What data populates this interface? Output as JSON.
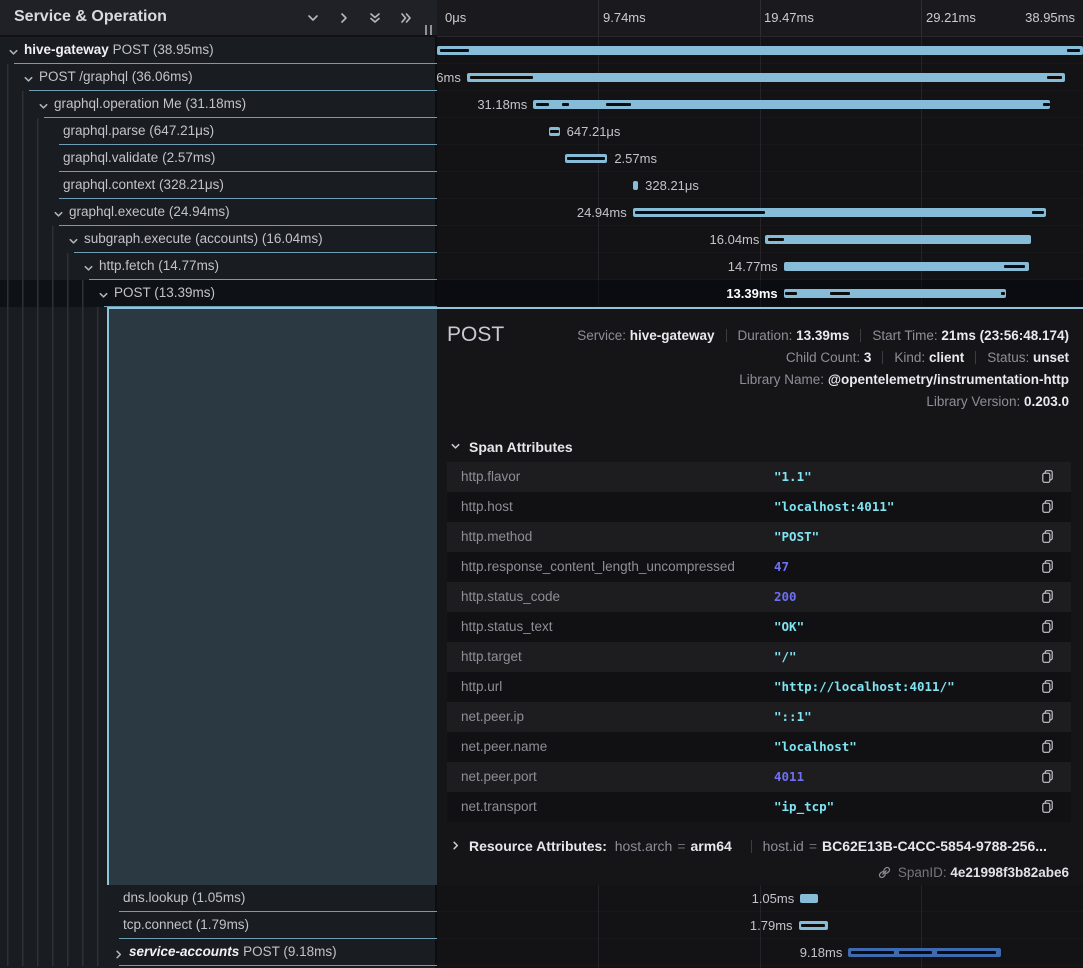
{
  "header": {
    "title": "Service & Operation",
    "icons": [
      "collapse-one-icon",
      "expand-one-icon",
      "collapse-all-icon",
      "expand-all-icon"
    ]
  },
  "timeline": {
    "ticks": [
      "0μs",
      "9.74ms",
      "19.47ms",
      "29.21ms",
      "38.95ms"
    ]
  },
  "colors": {
    "bar_primary": "#86bcd7",
    "bar_secondary": "#3e6bb0",
    "accent_border": "#8fc4da",
    "string_value": "#7fe3f2",
    "number_value": "#6f6ff2"
  },
  "chart_data": {
    "type": "gantt-trace",
    "total_ms": 38.95,
    "spans": [
      {
        "service": "hive-gateway",
        "service_italic": false,
        "name": "POST",
        "duration_label": "38.95ms",
        "start_ms": 0,
        "duration_ms": 38.95,
        "depth": 0,
        "expander": "down",
        "label_side": "none",
        "section": "top",
        "selected": false,
        "color": "primary",
        "marks": [
          [
            0.5,
            5
          ],
          [
            97.5,
            99.5
          ]
        ]
      },
      {
        "service": null,
        "service_italic": false,
        "name": "POST /graphql",
        "duration_label": "36.06ms",
        "start_ms": 1.8,
        "duration_ms": 36.06,
        "depth": 1,
        "expander": "down",
        "label_side": "left",
        "section": "top",
        "selected": false,
        "color": "primary",
        "marks": [
          [
            0.5,
            11
          ],
          [
            97,
            99.5
          ]
        ]
      },
      {
        "service": null,
        "service_italic": false,
        "name": "graphql.operation Me",
        "duration_label": "31.18ms",
        "start_ms": 5.8,
        "duration_ms": 31.18,
        "depth": 2,
        "expander": "down",
        "label_side": "left",
        "section": "top",
        "selected": false,
        "color": "primary",
        "marks": [
          [
            0.5,
            3
          ],
          [
            5.5,
            7
          ],
          [
            14,
            19
          ],
          [
            98.5,
            100
          ]
        ]
      },
      {
        "service": null,
        "service_italic": false,
        "name": "graphql.parse",
        "duration_label": "647.21μs",
        "start_ms": 6.75,
        "duration_ms": 0.64721,
        "depth": 3,
        "expander": null,
        "label_side": "right",
        "section": "top",
        "selected": false,
        "color": "primary",
        "marks": [
          [
            8,
            92
          ]
        ]
      },
      {
        "service": null,
        "service_italic": false,
        "name": "graphql.validate",
        "duration_label": "2.57ms",
        "start_ms": 7.7,
        "duration_ms": 2.57,
        "depth": 3,
        "expander": null,
        "label_side": "right",
        "section": "top",
        "selected": false,
        "color": "primary",
        "marks": [
          [
            5,
            95
          ]
        ]
      },
      {
        "service": null,
        "service_italic": false,
        "name": "graphql.context",
        "duration_label": "328.21μs",
        "start_ms": 11.8,
        "duration_ms": 0.32821,
        "depth": 3,
        "expander": null,
        "label_side": "right",
        "section": "top",
        "selected": false,
        "color": "primary",
        "marks": []
      },
      {
        "service": null,
        "service_italic": false,
        "name": "graphql.execute",
        "duration_label": "24.94ms",
        "start_ms": 11.8,
        "duration_ms": 24.94,
        "depth": 3,
        "expander": "down",
        "label_side": "left",
        "section": "top",
        "selected": false,
        "color": "primary",
        "marks": [
          [
            0.5,
            32
          ],
          [
            96.5,
            99.5
          ]
        ]
      },
      {
        "service": null,
        "service_italic": false,
        "name": "subgraph.execute (accounts)",
        "duration_label": "16.04ms",
        "start_ms": 19.8,
        "duration_ms": 16.04,
        "depth": 4,
        "expander": "down",
        "label_side": "left",
        "section": "top",
        "selected": false,
        "color": "primary",
        "marks": [
          [
            1,
            7
          ]
        ]
      },
      {
        "service": null,
        "service_italic": false,
        "name": "http.fetch",
        "duration_label": "14.77ms",
        "start_ms": 20.9,
        "duration_ms": 14.77,
        "depth": 5,
        "expander": "down",
        "label_side": "left",
        "section": "top",
        "selected": false,
        "color": "primary",
        "marks": [
          [
            90,
            98.5
          ]
        ]
      },
      {
        "service": null,
        "service_italic": false,
        "name": "POST",
        "duration_label": "13.39ms",
        "start_ms": 20.9,
        "duration_ms": 13.39,
        "depth": 6,
        "expander": "down",
        "label_side": "left",
        "section": "top",
        "selected": true,
        "color": "primary",
        "marks": [
          [
            0.5,
            6
          ],
          [
            21,
            30
          ],
          [
            98,
            99.8
          ]
        ]
      },
      {
        "service": null,
        "service_italic": false,
        "name": "dns.lookup",
        "duration_label": "1.05ms",
        "start_ms": 21.9,
        "duration_ms": 1.05,
        "depth": 7,
        "expander": null,
        "label_side": "left",
        "section": "bottom",
        "selected": false,
        "color": "primary",
        "marks": []
      },
      {
        "service": null,
        "service_italic": false,
        "name": "tcp.connect",
        "duration_label": "1.79ms",
        "start_ms": 21.8,
        "duration_ms": 1.79,
        "depth": 7,
        "expander": null,
        "label_side": "left",
        "section": "bottom",
        "selected": false,
        "color": "primary",
        "marks": [
          [
            8,
            88
          ]
        ]
      },
      {
        "service": "service-accounts",
        "service_italic": true,
        "name": "POST",
        "duration_label": "9.18ms",
        "start_ms": 24.8,
        "duration_ms": 9.18,
        "depth": 7,
        "expander": "right",
        "label_side": "left",
        "section": "bottom",
        "selected": false,
        "color": "secondary",
        "marks": [
          [
            2,
            30
          ],
          [
            33,
            55
          ],
          [
            58,
            97
          ]
        ]
      }
    ]
  },
  "detail": {
    "title": "POST",
    "meta_line1": [
      {
        "label": "Service:",
        "value": "hive-gateway"
      },
      {
        "label": "Duration:",
        "value": "13.39ms"
      },
      {
        "label": "Start Time:",
        "value": "21ms (23:56:48.174)"
      }
    ],
    "meta_line2": [
      {
        "label": "Child Count:",
        "value": "3"
      },
      {
        "label": "Kind:",
        "value": "client"
      },
      {
        "label": "Status:",
        "value": "unset"
      }
    ],
    "meta_line3": [
      {
        "label": "Library Name:",
        "value": "@opentelemetry/instrumentation-http"
      }
    ],
    "meta_line4": [
      {
        "label": "Library Version:",
        "value": "0.203.0"
      }
    ],
    "span_attributes_title": "Span Attributes",
    "attributes": [
      {
        "key": "http.flavor",
        "value": "\"1.1\"",
        "type": "string"
      },
      {
        "key": "http.host",
        "value": "\"localhost:4011\"",
        "type": "string"
      },
      {
        "key": "http.method",
        "value": "\"POST\"",
        "type": "string"
      },
      {
        "key": "http.response_content_length_uncompressed",
        "value": "47",
        "type": "number"
      },
      {
        "key": "http.status_code",
        "value": "200",
        "type": "number"
      },
      {
        "key": "http.status_text",
        "value": "\"OK\"",
        "type": "string"
      },
      {
        "key": "http.target",
        "value": "\"/\"",
        "type": "string"
      },
      {
        "key": "http.url",
        "value": "\"http://localhost:4011/\"",
        "type": "string"
      },
      {
        "key": "net.peer.ip",
        "value": "\"::1\"",
        "type": "string"
      },
      {
        "key": "net.peer.name",
        "value": "\"localhost\"",
        "type": "string"
      },
      {
        "key": "net.peer.port",
        "value": "4011",
        "type": "number"
      },
      {
        "key": "net.transport",
        "value": "\"ip_tcp\"",
        "type": "string"
      }
    ],
    "resource": {
      "title": "Resource Attributes:",
      "pairs": [
        {
          "key": "host.arch",
          "value": "arm64"
        },
        {
          "key": "host.id",
          "value": "BC62E13B-C4CC-5854-9788-256..."
        }
      ]
    },
    "span_id": {
      "label": "SpanID:",
      "value": "4e21998f3b82abe6"
    }
  }
}
